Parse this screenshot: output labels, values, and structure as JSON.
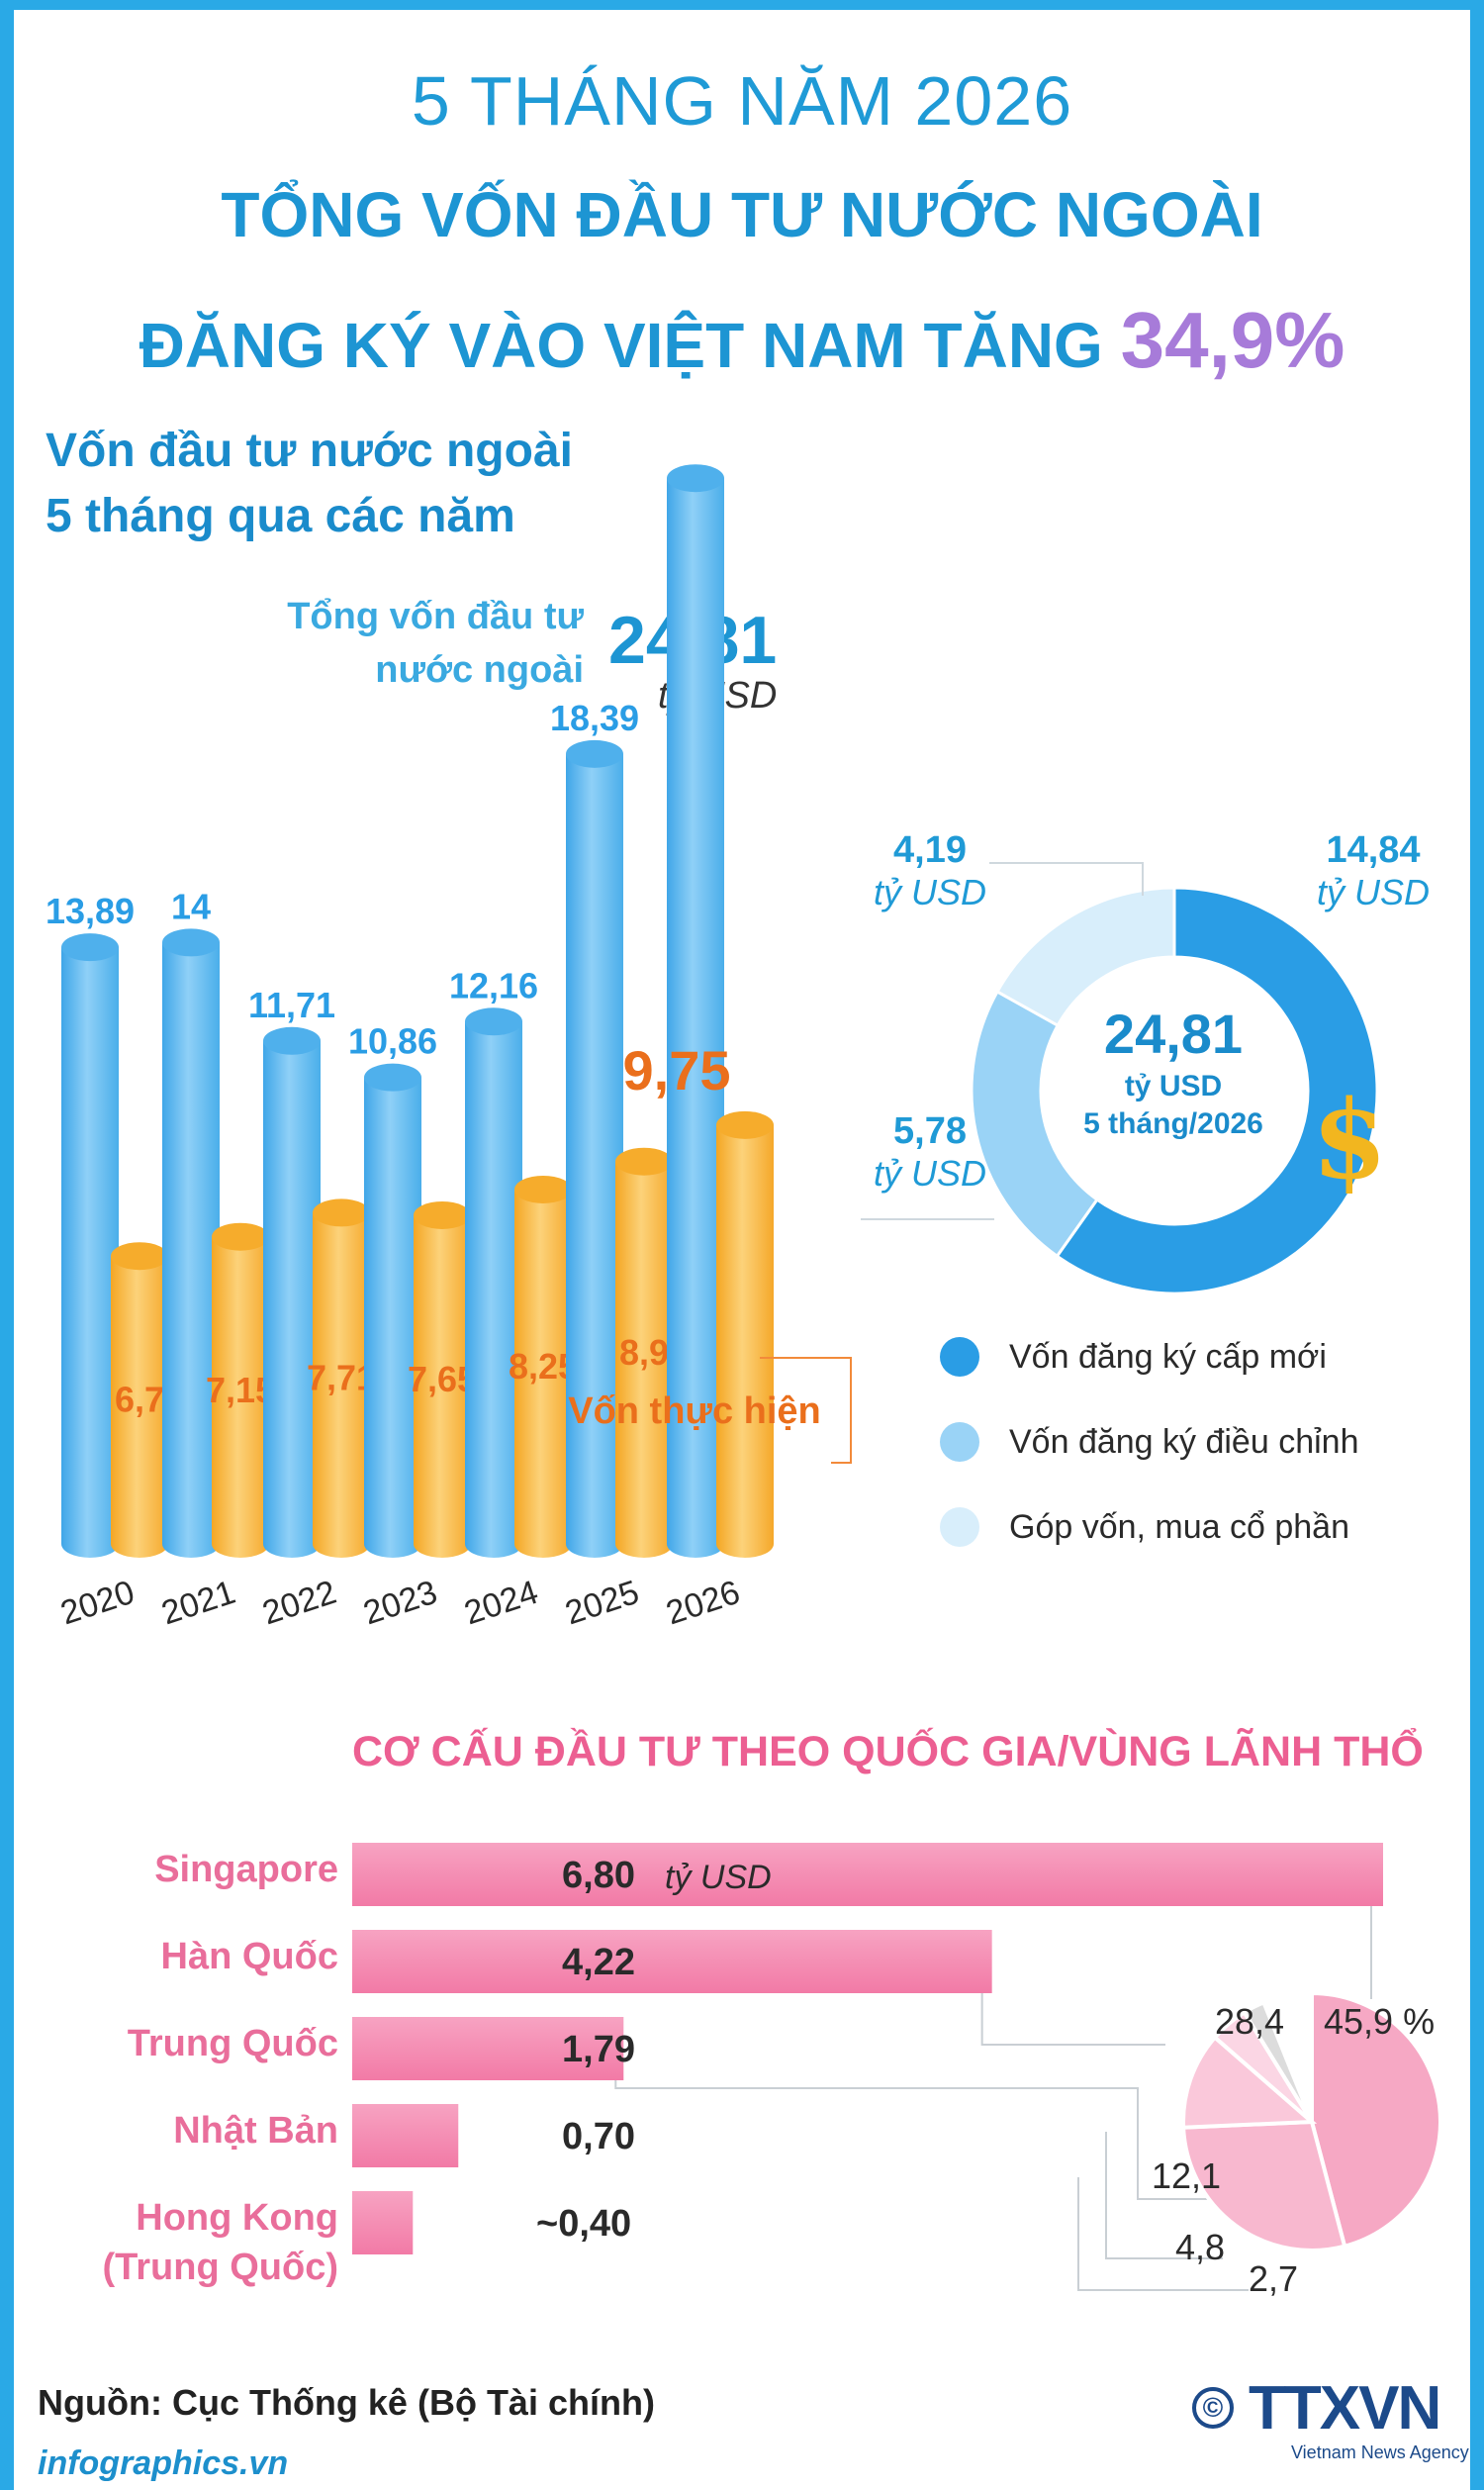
{
  "header": {
    "line1": "5 THÁNG NĂM 2026",
    "line2": "TỔNG VỐN ĐẦU TƯ NƯỚC NGOÀI",
    "line3": "ĐĂNG KÝ VÀO VIỆT NAM TĂNG",
    "growth": "34,9%"
  },
  "section1": {
    "title_line1": "Vốn đầu tư nước ngoài",
    "title_line2": "5 tháng qua các năm",
    "total_label_line1": "Tổng vốn đầu tư",
    "total_label_line2": "nước ngoài",
    "total_value": "24,81",
    "total_unit": "tỷ USD",
    "implemented_label": "Vốn thực hiện"
  },
  "chart_data": [
    {
      "type": "bar",
      "categories": [
        "2020",
        "2021",
        "2022",
        "2023",
        "2024",
        "2025",
        "2026"
      ],
      "series": [
        {
          "name": "Tổng vốn đầu tư nước ngoài",
          "values": [
            13.89,
            14,
            11.71,
            10.86,
            12.16,
            18.39,
            24.81
          ],
          "labels": [
            "13,89",
            "14",
            "11,71",
            "10,86",
            "12,16",
            "18,39",
            ""
          ],
          "color": "#5cb8ef"
        },
        {
          "name": "Vốn thực hiện",
          "values": [
            6.7,
            7.15,
            7.71,
            7.65,
            8.25,
            8.9,
            9.75
          ],
          "labels": [
            "6,7",
            "7,15",
            "7,71",
            "7,65",
            "8,25",
            "8,9",
            "9,75"
          ],
          "color": "#f9b53a"
        }
      ]
    },
    {
      "type": "pie",
      "center_value": "24,81",
      "center_unit": "tỷ USD",
      "center_period": "5 tháng/2026",
      "slices": [
        {
          "name": "Vốn đăng ký cấp mới",
          "value": 14.84,
          "label": "14,84",
          "unit": "tỷ USD",
          "color": "#2a9de5"
        },
        {
          "name": "Vốn đăng ký điều chỉnh",
          "value": 5.78,
          "label": "5,78",
          "unit": "tỷ USD",
          "color": "#9ad3f6"
        },
        {
          "name": "Góp vốn, mua cổ phần",
          "value": 4.19,
          "label": "4,19",
          "unit": "tỷ USD",
          "color": "#d8eefb"
        }
      ]
    },
    {
      "type": "bar",
      "title": "CƠ CẤU ĐẦU TƯ THEO QUỐC GIA/VÙNG LÃNH THỔ",
      "categories": [
        "Singapore",
        "Hàn Quốc",
        "Trung Quốc",
        "Nhật Bản",
        "Hong Kong (Trung Quốc)"
      ],
      "values": [
        6.8,
        4.22,
        1.79,
        0.7,
        0.4
      ],
      "labels": [
        "6,80",
        "4,22",
        "1,79",
        "0,70",
        "~0,40"
      ],
      "unit": "tỷ USD",
      "color": "#f48fb1"
    },
    {
      "type": "pie",
      "slices": [
        {
          "value": 45.9,
          "label": "45,9 %"
        },
        {
          "value": 28.4,
          "label": "28,4"
        },
        {
          "value": 12.1,
          "label": "12,1"
        },
        {
          "value": 4.8,
          "label": "4,8"
        },
        {
          "value": 2.7,
          "label": "2,7"
        }
      ]
    }
  ],
  "legend": {
    "new": "Vốn đăng ký cấp mới",
    "adjusted": "Vốn đăng ký điều chỉnh",
    "shares": "Góp vốn, mua cổ phần"
  },
  "countries": {
    "singapore": "Singapore",
    "korea": "Hàn Quốc",
    "china": "Trung Quốc",
    "japan": "Nhật Bản",
    "hk_line1": "Hong Kong",
    "hk_line2": "(Trung Quốc)"
  },
  "footer": {
    "source": "Nguồn: Cục Thống kê (Bộ Tài chính)",
    "site": "infographics.vn",
    "logo": "TTXVN",
    "logo_sub": "Vietnam News Agency",
    "copyright": "©"
  }
}
